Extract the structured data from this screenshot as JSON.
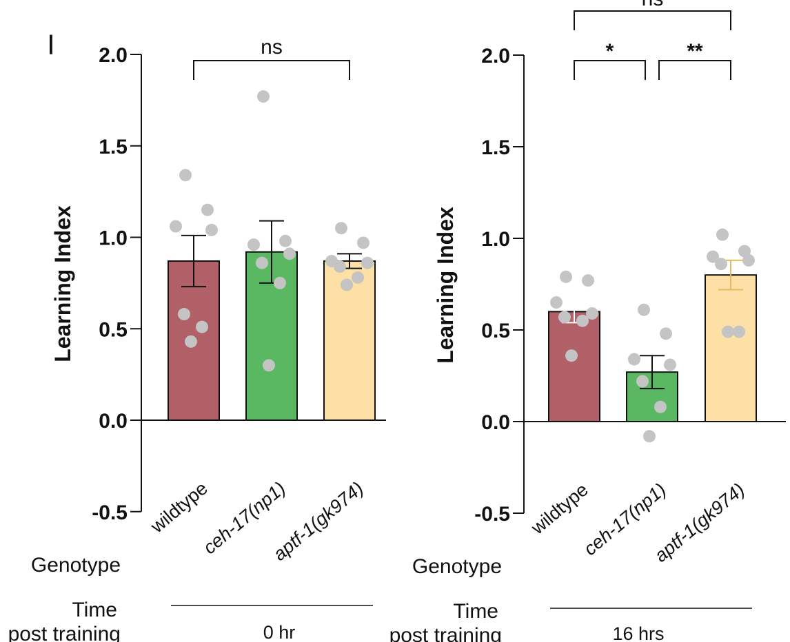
{
  "chart_data": [
    {
      "type": "bar",
      "panel": "left",
      "ylabel": "Learning Index",
      "ylim": [
        -0.5,
        2.0
      ],
      "yticks": [
        "2.0",
        "1.5",
        "1.0",
        "0.5",
        "0.0",
        "-0.5"
      ],
      "categories": [
        "wildtype",
        "ceh-17(np1)",
        "aptf-1(gk974)"
      ],
      "category_parts": [
        {
          "prefix": "wildtype",
          "italic": ""
        },
        {
          "prefix": "",
          "italic": "ceh-17(np1)"
        },
        {
          "prefix": "",
          "italic": "aptf-1(gk974)"
        }
      ],
      "values": [
        0.87,
        0.92,
        0.87
      ],
      "sem": [
        0.14,
        0.17,
        0.04
      ],
      "colors": [
        "#b06066",
        "#5bb862",
        "#fde0a6"
      ],
      "error_colors": [
        "#111111",
        "#111111",
        "#111111"
      ],
      "points": [
        [
          1.34,
          1.15,
          1.06,
          1.04,
          0.58,
          0.51,
          0.43
        ],
        [
          1.77,
          0.98,
          0.96,
          0.91,
          0.86,
          0.75,
          0.3
        ],
        [
          1.05,
          0.97,
          0.87,
          0.86,
          0.84,
          0.78,
          0.74
        ]
      ],
      "genotype_label": "Genotype",
      "time_label_line1": "Time",
      "time_label_line2": "post training",
      "time_value": "0 hr",
      "significance": [
        {
          "from": 0,
          "to": 2,
          "label": "ns",
          "level": 1
        }
      ],
      "extra_marks": [
        "|"
      ]
    },
    {
      "type": "bar",
      "panel": "right",
      "ylabel": "Learning Index",
      "ylim": [
        -0.5,
        2.0
      ],
      "yticks": [
        "2.0",
        "1.5",
        "1.0",
        "0.5",
        "0.0",
        "-0.5"
      ],
      "categories": [
        "wildtype",
        "ceh-17(np1)",
        "aptf-1(gk974)"
      ],
      "category_parts": [
        {
          "prefix": "wildtype",
          "italic": ""
        },
        {
          "prefix": "",
          "italic": "ceh-17(np1)"
        },
        {
          "prefix": "",
          "italic": "aptf-1(gk974)"
        }
      ],
      "values": [
        0.6,
        0.27,
        0.8
      ],
      "sem": [
        0.06,
        0.09,
        0.08
      ],
      "colors": [
        "#b06066",
        "#5bb862",
        "#fde0a6"
      ],
      "error_colors": [
        "#ffffff",
        "#111111",
        "#e8b860"
      ],
      "points": [
        [
          0.79,
          0.77,
          0.65,
          0.59,
          0.57,
          0.55,
          0.36
        ],
        [
          0.61,
          0.48,
          0.34,
          0.31,
          0.22,
          0.08,
          -0.08
        ],
        [
          1.02,
          0.93,
          0.9,
          0.88,
          0.86,
          0.49,
          0.49
        ]
      ],
      "genotype_label": "Genotype",
      "time_label_line1": "Time",
      "time_label_line2": "post training",
      "time_value": "16 hrs",
      "significance": [
        {
          "from": 0,
          "to": 1,
          "label": "*",
          "level": 1
        },
        {
          "from": 1,
          "to": 2,
          "label": "**",
          "level": 1
        },
        {
          "from": 0,
          "to": 2,
          "label": "ns",
          "level": 2
        }
      ]
    }
  ]
}
